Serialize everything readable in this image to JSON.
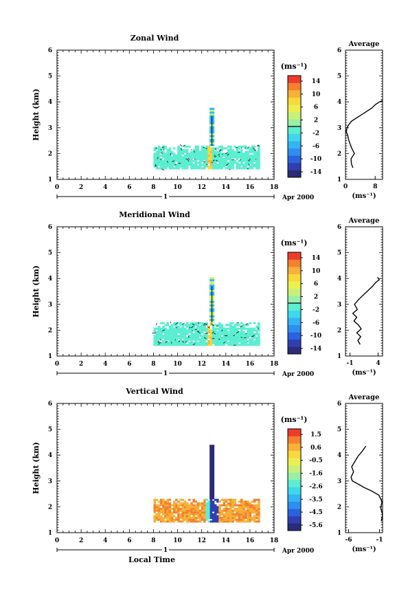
{
  "chart_data": [
    {
      "type": "heatmap",
      "title": "Zonal Wind",
      "xlabel": "",
      "ylabel": "Height (km)",
      "xlim": [
        0,
        18
      ],
      "ylim": [
        1,
        6
      ],
      "x_ticks": [
        "0",
        "2",
        "4",
        "6",
        "8",
        "10",
        "12",
        "14",
        "16",
        "18"
      ],
      "y_ticks": [
        "1",
        "2",
        "3",
        "4",
        "5",
        "6"
      ],
      "date_axis": {
        "day_label": "1",
        "month_label": "Apr 2000"
      },
      "time_range_hours": [
        8,
        16.8
      ],
      "height_range_km": [
        1.4,
        2.3
      ],
      "colorbar": {
        "unit": "(ms⁻¹)",
        "tick_labels": [
          "14",
          "10",
          "6",
          "2",
          "-2",
          "-6",
          "-10",
          "-14"
        ],
        "range": [
          -16,
          16
        ],
        "contour_level": 0
      },
      "average_profile": {
        "title": "Average",
        "xlabel": "(ms⁻¹)",
        "x_ticks": [
          "0",
          "8"
        ],
        "xlim": [
          0,
          10
        ],
        "ylim": [
          1,
          6
        ],
        "y_ticks": [
          "1",
          "2",
          "3",
          "4",
          "5",
          "6"
        ],
        "height_km": [
          1.45,
          1.6,
          1.8,
          2.0,
          2.2,
          2.35,
          2.5,
          2.7,
          2.85,
          3.0,
          3.1,
          3.25,
          3.4,
          3.6,
          3.75,
          3.9,
          4.0,
          4.05
        ],
        "value_ms": [
          2.0,
          1.6,
          1.5,
          2.4,
          1.7,
          1.3,
          0.9,
          0.6,
          0.2,
          0.4,
          0.8,
          1.6,
          3.2,
          5.4,
          7.0,
          8.1,
          9.2,
          10.2
        ]
      }
    },
    {
      "type": "heatmap",
      "title": "Meridional Wind",
      "xlabel": "",
      "ylabel": "Height (km)",
      "xlim": [
        0,
        18
      ],
      "ylim": [
        1,
        6
      ],
      "x_ticks": [
        "0",
        "2",
        "4",
        "6",
        "8",
        "10",
        "12",
        "14",
        "16",
        "18"
      ],
      "y_ticks": [
        "1",
        "2",
        "3",
        "4",
        "5",
        "6"
      ],
      "date_axis": {
        "day_label": "1",
        "month_label": "Apr 2000"
      },
      "time_range_hours": [
        8,
        16.8
      ],
      "height_range_km": [
        1.4,
        2.3
      ],
      "colorbar": {
        "unit": "(ms⁻¹)",
        "tick_labels": [
          "14",
          "10",
          "6",
          "2",
          "-2",
          "-6",
          "-10",
          "-14"
        ],
        "range": [
          -16,
          16
        ],
        "contour_level": 0
      },
      "average_profile": {
        "title": "Average",
        "xlabel": "(ms⁻¹)",
        "x_ticks": [
          "-1",
          "4"
        ],
        "xlim": [
          -1.8,
          4.8
        ],
        "ylim": [
          1,
          6
        ],
        "y_ticks": [
          "1",
          "2",
          "3",
          "4",
          "5",
          "6"
        ],
        "height_km": [
          1.45,
          1.6,
          1.75,
          1.9,
          2.05,
          2.2,
          2.35,
          2.5,
          2.65,
          2.8,
          3.0,
          3.2,
          3.45,
          3.7,
          3.85,
          3.95,
          4.05
        ],
        "value_ms": [
          0.8,
          0.4,
          0.9,
          0.2,
          1.0,
          0.5,
          -0.3,
          0.2,
          -0.5,
          0.3,
          -0.2,
          0.6,
          1.8,
          3.0,
          3.6,
          4.2,
          3.9
        ]
      }
    },
    {
      "type": "heatmap",
      "title": "Vertical Wind",
      "xlabel": "Local Time",
      "ylabel": "Height (km)",
      "xlim": [
        0,
        18
      ],
      "ylim": [
        1,
        6
      ],
      "x_ticks": [
        "0",
        "2",
        "4",
        "6",
        "8",
        "10",
        "12",
        "14",
        "16",
        "18"
      ],
      "y_ticks": [
        "1",
        "2",
        "3",
        "4",
        "5",
        "6"
      ],
      "date_axis": {
        "day_label": "1",
        "month_label": "Apr 2000"
      },
      "time_range_hours": [
        8,
        16.8
      ],
      "height_range_km": [
        1.4,
        2.3
      ],
      "colorbar": {
        "unit": "(ms⁻¹)",
        "tick_labels": [
          "1.5",
          "0.6",
          "-0.5",
          "-1.6",
          "-2.6",
          "-3.5",
          "-4.5",
          "-5.6"
        ],
        "range": [
          -6.0,
          2.0
        ],
        "contour_level": null
      },
      "average_profile": {
        "title": "Average",
        "xlabel": "(ms⁻¹)",
        "x_ticks": [
          "-6",
          "-1"
        ],
        "xlim": [
          -6.5,
          -0.5
        ],
        "ylim": [
          1,
          6
        ],
        "y_ticks": [
          "1",
          "2",
          "3",
          "4",
          "5",
          "6"
        ],
        "height_km": [
          1.45,
          1.7,
          1.95,
          2.2,
          2.45,
          2.6,
          2.75,
          2.9,
          3.0,
          3.15,
          3.35,
          3.55,
          3.75,
          3.95,
          4.15,
          4.35
        ],
        "value_ms": [
          -0.7,
          -0.4,
          -0.8,
          -0.6,
          -1.1,
          -2.2,
          -3.5,
          -4.6,
          -5.4,
          -5.6,
          -5.2,
          -5.5,
          -5.0,
          -4.5,
          -3.8,
          -3.2
        ]
      }
    }
  ]
}
